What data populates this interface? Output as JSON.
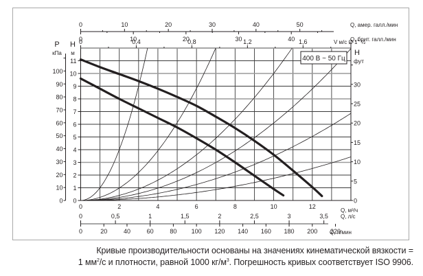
{
  "chart_data": {
    "type": "line",
    "title": "",
    "legend_box": "400 В ~ 50 Гц",
    "xlabel": "Q, м³/ч",
    "ylabel": "H м",
    "xlim": [
      0,
      14
    ],
    "ylim": [
      0,
      12
    ],
    "grid": true,
    "axes": {
      "bottom_primary": {
        "label": "Q, м³/ч",
        "ticks": [
          0,
          2,
          4,
          6,
          8,
          10,
          12
        ]
      },
      "bottom_ls": {
        "label": "Q, л/с",
        "ticks": [
          "0",
          "0,5",
          "1",
          "1,5",
          "2",
          "2,5",
          "3",
          "3,5"
        ]
      },
      "bottom_lmin": {
        "label": "Q, л/мин",
        "ticks": [
          0,
          20,
          40,
          60,
          80,
          100,
          120,
          140,
          160,
          180,
          200,
          220
        ]
      },
      "top_us_gpm": {
        "label": "Q, амер. галл./мин",
        "ticks": [
          0,
          10,
          20,
          30,
          40,
          50
        ]
      },
      "top_uk_gpm": {
        "label": "Q, брит. галл./мин",
        "ticks": [
          0,
          10,
          20,
          30,
          40
        ]
      },
      "top_velocity": {
        "label": "V м/с Ø 1\" ½",
        "ticks": [
          "0",
          "0,4",
          "0,8",
          "1,2",
          "1,6"
        ]
      },
      "left_m": {
        "label_top": "H",
        "label_unit": "м",
        "ticks": [
          0,
          1,
          2,
          3,
          4,
          5,
          6,
          7,
          8,
          9,
          10,
          11
        ]
      },
      "left_kpa": {
        "label_top": "P",
        "label_unit": "кПа",
        "ticks": [
          0,
          10,
          20,
          30,
          40,
          50,
          60,
          70,
          80,
          90,
          100
        ]
      },
      "right_ft": {
        "label_top": "H",
        "label_unit": "фут",
        "ticks": [
          0,
          5,
          10,
          15,
          20,
          25,
          30
        ]
      }
    },
    "series": [
      {
        "name": "pump-curve-large",
        "style": "thick",
        "x": [
          0,
          1,
          2,
          3,
          4,
          5,
          6,
          7,
          8,
          9,
          10,
          11,
          12,
          12.5
        ],
        "y": [
          11.1,
          10.5,
          9.95,
          9.4,
          8.8,
          8.15,
          7.45,
          6.6,
          5.7,
          4.7,
          3.6,
          2.35,
          1.05,
          0.35
        ]
      },
      {
        "name": "pump-curve-small",
        "style": "thick",
        "x": [
          0,
          1,
          2,
          3,
          4,
          5,
          6,
          7,
          8,
          9,
          10,
          10.5
        ],
        "y": [
          9.6,
          8.8,
          8.0,
          7.25,
          6.5,
          5.75,
          4.9,
          4.0,
          3.0,
          1.95,
          0.9,
          0.4
        ]
      },
      {
        "name": "system-curve-1",
        "style": "thin",
        "k": 1.0
      },
      {
        "name": "system-curve-2",
        "style": "thin",
        "k": 0.245
      },
      {
        "name": "system-curve-3",
        "style": "thin",
        "k": 0.1
      },
      {
        "name": "system-curve-4",
        "style": "thin",
        "k": 0.061
      },
      {
        "name": "system-curve-5",
        "style": "thin",
        "k": 0.035
      },
      {
        "name": "system-curve-6",
        "style": "thin",
        "k": 0.0175
      }
    ]
  },
  "caption": {
    "line1": "Кривые производительности основаны на значениях кинематической вязкости =",
    "line2_a": "1 мм",
    "line2_sup1": "2",
    "line2_b": "/с и плотности, равной 1000 кг/м",
    "line2_sup2": "3",
    "line2_c": ". Погрешность кривых соответствует ISO 9906."
  },
  "colors": {
    "ink": "#231f20",
    "grid_dark": "#3a3a3a",
    "grid_light": "#9a9a9a",
    "frame": "#a8a8a8"
  }
}
